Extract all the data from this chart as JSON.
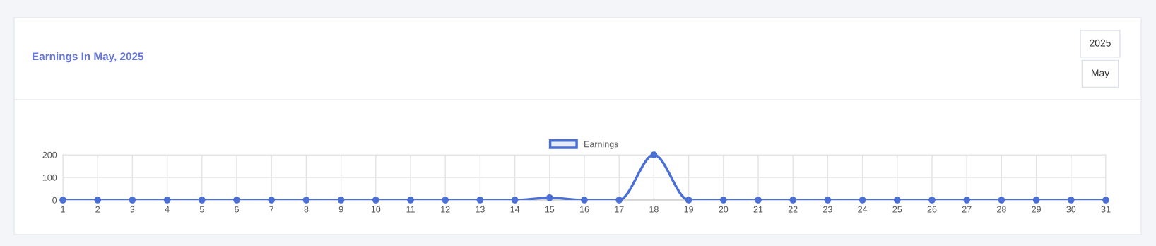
{
  "chart_data": {
    "type": "line",
    "title": "Earnings In May, 2025",
    "annotations": [
      "2025",
      "May"
    ],
    "categories": [
      "1",
      "2",
      "3",
      "4",
      "5",
      "6",
      "7",
      "8",
      "9",
      "10",
      "11",
      "12",
      "13",
      "14",
      "15",
      "16",
      "17",
      "18",
      "19",
      "20",
      "21",
      "22",
      "23",
      "24",
      "25",
      "26",
      "27",
      "28",
      "29",
      "30",
      "31"
    ],
    "series": [
      {
        "name": "Earnings",
        "color": "#4a6fd6",
        "values": [
          0,
          0,
          0,
          0,
          0,
          0,
          0,
          0,
          0,
          0,
          0,
          0,
          0,
          0,
          10,
          0,
          0,
          200,
          0,
          0,
          0,
          0,
          0,
          0,
          0,
          0,
          0,
          0,
          0,
          0,
          0
        ]
      }
    ],
    "ylim": [
      0,
      200
    ],
    "yticks": [
      0,
      100,
      200
    ],
    "grid": true,
    "legend": "top",
    "marker": "circle",
    "line_style": "solid"
  }
}
